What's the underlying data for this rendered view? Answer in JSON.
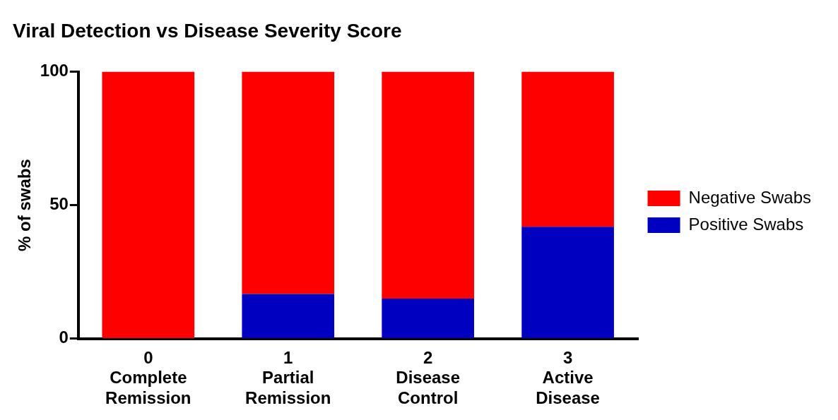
{
  "chart_data": {
    "type": "bar",
    "title": "Viral Detection vs Disease Severity Score",
    "ylabel": "% of swabs",
    "categories": [
      "0\nComplete\nRemission",
      "1\nPartial\nRemission",
      "2\nDisease\nControl",
      "3\nActive\nDisease"
    ],
    "series": [
      {
        "name": "Positive Swabs",
        "color": "#0000c0",
        "values": [
          0,
          16.7,
          15,
          41.9
        ]
      },
      {
        "name": "Negative Swabs",
        "color": "#ff0000",
        "values": [
          100,
          83.3,
          85,
          58.1
        ]
      }
    ],
    "stacked": true,
    "ylim": [
      0,
      100
    ],
    "yticks": [
      0,
      50,
      100
    ],
    "grid": false,
    "legend": "right"
  }
}
